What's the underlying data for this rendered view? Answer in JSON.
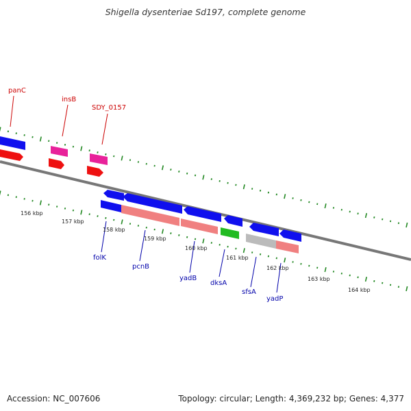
{
  "title": "Shigella dysenteriae Sd197, complete genome",
  "footer": {
    "accession": "Accession: NC_007606",
    "topology": "Topology: circular; Length: 4,369,232 bp; Genes: 4,377"
  },
  "colors": {
    "forward_cds": "#0000ee",
    "forward_gene": "#ee0000",
    "reverse_cds": "#0000ee",
    "reverse_gene_pink": "#f08080",
    "pseudo_magenta": "#e8229a",
    "green_gene": "#22bb22",
    "gray_gene": "#bbbbbb",
    "backbone": "#777777",
    "tick": "#228822",
    "forward_label": "#cc0000",
    "reverse_label": "#0000aa"
  },
  "kbp_labels": [
    "156 kbp",
    "157 kbp",
    "158 kbp",
    "159 kbp",
    "160 kbp",
    "161 kbp",
    "162 kbp",
    "163 kbp",
    "164 kbp"
  ],
  "forward_labels": [
    "panC",
    "insB",
    "SDY_0157"
  ],
  "reverse_labels": [
    "folK",
    "pcnB",
    "yadB",
    "dksA",
    "sfsA",
    "yadP"
  ]
}
